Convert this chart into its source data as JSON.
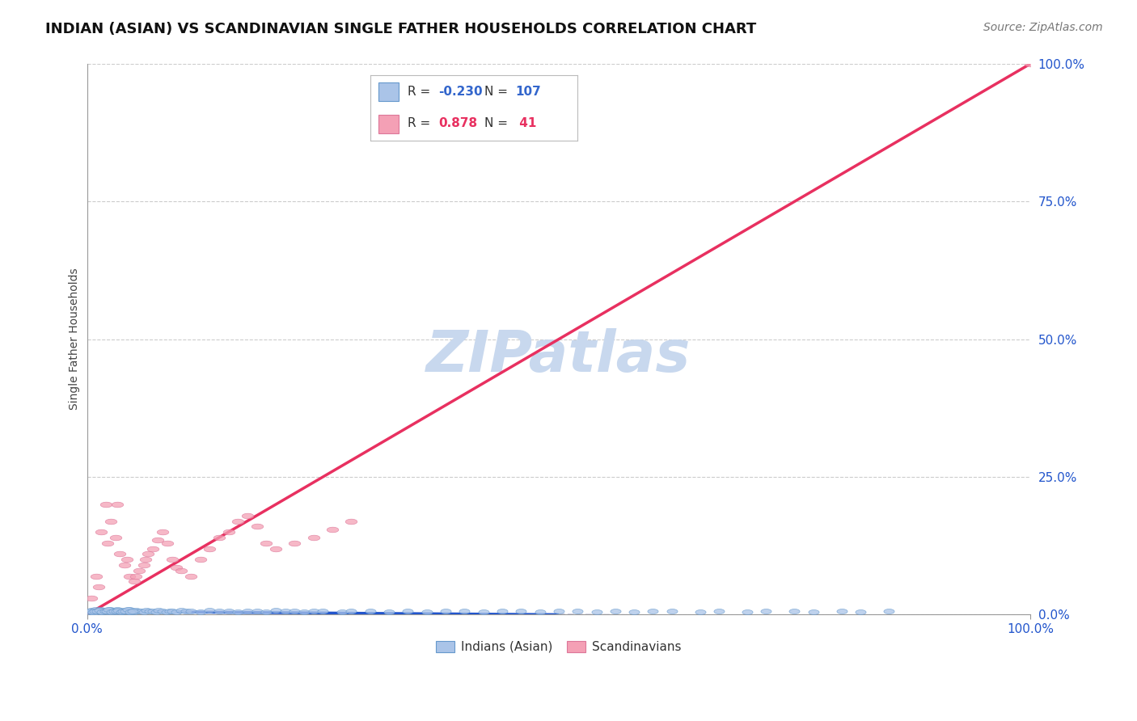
{
  "title": "INDIAN (ASIAN) VS SCANDINAVIAN SINGLE FATHER HOUSEHOLDS CORRELATION CHART",
  "source": "Source: ZipAtlas.com",
  "ylabel": "Single Father Households",
  "ytick_labels": [
    "0.0%",
    "25.0%",
    "50.0%",
    "75.0%",
    "100.0%"
  ],
  "ytick_vals": [
    0,
    25,
    50,
    75,
    100
  ],
  "legend_entries": [
    {
      "label": "Indians (Asian)",
      "face_color": "#aac4e8",
      "edge_color": "#6699cc",
      "R": -0.23,
      "N": 107,
      "R_color": "#3366cc",
      "N_color": "#3366cc"
    },
    {
      "label": "Scandinavians",
      "face_color": "#f4a0b5",
      "edge_color": "#dd7799",
      "R": 0.878,
      "N": 41,
      "R_color": "#e83060",
      "N_color": "#e83060"
    }
  ],
  "blue_line_color": "#2255cc",
  "blue_dash_color": "#aaaacc",
  "pink_line_color": "#e83060",
  "watermark": "ZIPatlas",
  "watermark_color": "#c8d8ee",
  "grid_color": "#cccccc",
  "background_color": "#ffffff",
  "title_fontsize": 13,
  "source_fontsize": 10,
  "xlim": [
    0,
    100
  ],
  "ylim": [
    0,
    100
  ],
  "blue_solid_x_end": 50,
  "blue_slope": -0.012,
  "blue_intercept": 0.6,
  "pink_slope": 1.0,
  "pink_intercept": 0.0,
  "blue_x": [
    0.3,
    0.5,
    0.7,
    0.9,
    1.0,
    1.2,
    1.4,
    1.5,
    1.7,
    1.8,
    2.0,
    2.2,
    2.4,
    2.5,
    2.7,
    2.8,
    3.0,
    3.2,
    3.4,
    3.5,
    3.7,
    3.9,
    4.0,
    4.2,
    4.4,
    4.5,
    4.7,
    4.9,
    5.0,
    5.2,
    5.5,
    5.8,
    6.0,
    6.3,
    6.6,
    7.0,
    7.3,
    7.6,
    8.0,
    8.4,
    8.8,
    9.0,
    9.5,
    10.0,
    10.5,
    11.0,
    12.0,
    13.0,
    14.0,
    15.0,
    16.0,
    17.0,
    18.0,
    19.0,
    20.0,
    21.0,
    22.0,
    23.0,
    24.0,
    25.0,
    27.0,
    28.0,
    30.0,
    32.0,
    34.0,
    36.0,
    38.0,
    40.0,
    42.0,
    44.0,
    46.0,
    48.0,
    50.0,
    52.0,
    54.0,
    56.0,
    58.0,
    60.0,
    62.0,
    65.0,
    67.0,
    70.0,
    72.0,
    75.0,
    77.0,
    80.0,
    82.0,
    85.0,
    0.4,
    0.6,
    0.8,
    1.1,
    1.3,
    1.6,
    1.9,
    2.1,
    2.3,
    2.6,
    2.9,
    3.1,
    3.3,
    3.6,
    3.8,
    4.1,
    4.3,
    4.6,
    4.8
  ],
  "blue_y": [
    0.5,
    0.8,
    0.4,
    1.0,
    0.7,
    0.6,
    0.9,
    0.5,
    0.8,
    0.6,
    0.7,
    0.5,
    0.9,
    0.6,
    0.7,
    0.8,
    0.5,
    0.9,
    0.6,
    0.7,
    0.5,
    0.8,
    0.6,
    0.7,
    0.5,
    0.9,
    0.6,
    0.7,
    0.5,
    0.8,
    0.6,
    0.7,
    0.5,
    0.8,
    0.6,
    0.7,
    0.5,
    0.8,
    0.6,
    0.5,
    0.7,
    0.6,
    0.5,
    0.8,
    0.6,
    0.7,
    0.5,
    0.8,
    0.6,
    0.7,
    0.5,
    0.6,
    0.7,
    0.5,
    0.8,
    0.6,
    0.7,
    0.5,
    0.6,
    0.7,
    0.5,
    0.6,
    0.7,
    0.5,
    0.6,
    0.5,
    0.7,
    0.6,
    0.5,
    0.7,
    0.6,
    0.5,
    0.7,
    0.6,
    0.5,
    0.6,
    0.5,
    0.7,
    0.6,
    0.5,
    0.6,
    0.5,
    0.7,
    0.6,
    0.5,
    0.6,
    0.5,
    0.7,
    0.6,
    0.5,
    0.7,
    0.6,
    0.8,
    0.5,
    0.7,
    0.6,
    0.9,
    0.5,
    0.7,
    0.6,
    0.8,
    0.5,
    0.7,
    0.6,
    0.9,
    0.5,
    0.7
  ],
  "pink_x": [
    0.5,
    1.0,
    1.5,
    2.0,
    2.5,
    3.0,
    3.5,
    4.0,
    4.5,
    5.0,
    5.5,
    6.0,
    6.5,
    7.0,
    7.5,
    8.0,
    8.5,
    9.0,
    9.5,
    10.0,
    11.0,
    12.0,
    13.0,
    14.0,
    15.0,
    16.0,
    17.0,
    18.0,
    19.0,
    20.0,
    22.0,
    24.0,
    26.0,
    28.0,
    100.0,
    1.2,
    2.2,
    3.2,
    4.2,
    5.2,
    6.2
  ],
  "pink_y": [
    3.0,
    7.0,
    15.0,
    20.0,
    17.0,
    14.0,
    11.0,
    9.0,
    7.0,
    6.0,
    8.0,
    9.0,
    11.0,
    12.0,
    13.5,
    15.0,
    13.0,
    10.0,
    8.5,
    8.0,
    7.0,
    10.0,
    12.0,
    14.0,
    15.0,
    17.0,
    18.0,
    16.0,
    13.0,
    12.0,
    13.0,
    14.0,
    15.5,
    17.0,
    100.0,
    5.0,
    13.0,
    20.0,
    10.0,
    7.0,
    10.0
  ]
}
